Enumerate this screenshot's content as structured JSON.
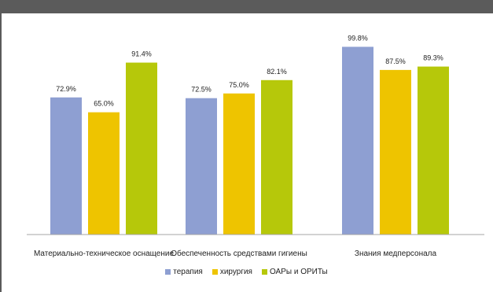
{
  "chart_data": {
    "type": "bar",
    "categories": [
      "Материально-техническое оснащение",
      "Обеспеченность средствами гигиены",
      "Знания медперсонала"
    ],
    "series": [
      {
        "name": "терапия",
        "values": [
          72.9,
          72.5,
          99.8
        ],
        "labels": [
          "72.9%",
          "72.5%",
          "99.8%"
        ],
        "color": "#8e9fd2"
      },
      {
        "name": "хирургия",
        "values": [
          65.0,
          75.0,
          87.5
        ],
        "labels": [
          "65.0%",
          "75.0%",
          "87.5%"
        ],
        "color": "#eec400"
      },
      {
        "name": "ОАРы и ОРИТы",
        "values": [
          91.4,
          82.1,
          89.3
        ],
        "labels": [
          "91.4%",
          "82.1%",
          "89.3%"
        ],
        "color": "#b6c80a"
      }
    ],
    "ylim": [
      0,
      100
    ],
    "grid": false,
    "legend_position": "bottom",
    "axis_color": "#a6a6a6"
  }
}
